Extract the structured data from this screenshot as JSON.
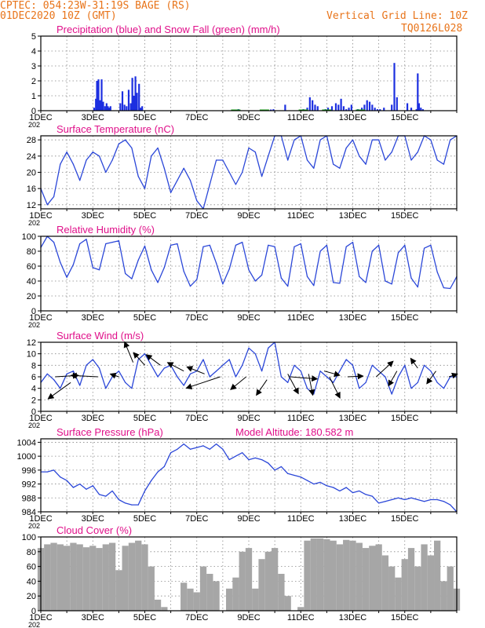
{
  "header": {
    "station": "CPTEC:   054:23W-31:19S  BAGE (RS)",
    "run": "01DEC2020 10Z (GMT)",
    "grid_line": "Vertical Grid Line: 10Z",
    "code": "TQ0126L028"
  },
  "colors": {
    "header_orange": "#e8741a",
    "title_magenta": "#e0108a",
    "line_blue": "#2b47d8",
    "precip_blue": "#1c2fe0",
    "snow_green": "#17a317",
    "cloud_gray": "#a6a6a6",
    "arrow_black": "#000000",
    "grid_gray": "#888888"
  },
  "x_axis": {
    "tick_labels": [
      "1DEC",
      "3DEC",
      "5DEC",
      "7DEC",
      "9DEC",
      "11DEC",
      "13DEC",
      "15DEC"
    ],
    "year_fragment": "202"
  },
  "chart_data": [
    {
      "type": "bar",
      "title": "Precipitation (blue) and Snow Fall (green) (mm/h)",
      "ylim": [
        0,
        5
      ],
      "yticks": [
        0,
        1,
        2,
        3,
        4,
        5
      ],
      "grid": true,
      "series": [
        {
          "name": "Precipitation",
          "x": [
            2.05,
            2.12,
            2.16,
            2.22,
            2.28,
            2.34,
            2.4,
            2.47,
            2.53,
            2.58,
            2.64,
            2.68,
            3.06,
            3.14,
            3.22,
            3.3,
            3.38,
            3.46,
            3.52,
            3.58,
            3.64,
            3.7,
            3.78,
            3.84,
            3.9,
            7.6,
            8.85,
            8.95,
            9.4,
            10.1,
            10.25,
            10.35,
            10.45,
            10.55,
            10.65,
            10.95,
            11.05,
            11.2,
            11.35,
            11.45,
            11.55,
            11.65,
            11.75,
            11.85,
            11.95,
            12.2,
            12.35,
            12.45,
            12.55,
            12.65,
            12.75,
            12.85,
            12.95,
            13.05,
            13.2,
            13.5,
            13.6,
            13.7,
            14.1,
            14.25,
            14.45,
            14.5,
            14.55,
            14.62,
            14.7
          ],
          "values": [
            0.2,
            0.8,
            2.0,
            2.1,
            0.7,
            2.1,
            0.6,
            0.3,
            0.5,
            0.3,
            0.2,
            0.3,
            0.5,
            1.3,
            0.4,
            0.3,
            1.4,
            0.5,
            2.2,
            1.0,
            2.3,
            1.2,
            1.8,
            0.2,
            0.3,
            0.1,
            0.05,
            0.1,
            0.4,
            0.1,
            0.2,
            0.9,
            0.7,
            0.4,
            0.3,
            0.1,
            0.2,
            0.3,
            0.5,
            0.4,
            0.8,
            0.3,
            0.1,
            0.2,
            0.4,
            0.1,
            0.2,
            0.4,
            0.7,
            0.6,
            0.4,
            0.2,
            0.1,
            0.1,
            0.2,
            0.4,
            3.2,
            0.9,
            0.5,
            0.2,
            0.1,
            2.5,
            0.5,
            0.2,
            0.1
          ]
        },
        {
          "name": "Snow Fall",
          "x": [
            7.5,
            8.6,
            10.1,
            11.0,
            12.3
          ],
          "values": [
            0.05,
            0.05,
            0.05,
            0.05,
            0.05
          ]
        }
      ]
    },
    {
      "type": "line",
      "title": "Surface Temperature (nC)",
      "ylim": [
        11,
        29
      ],
      "yticks": [
        12,
        16,
        20,
        24,
        28
      ],
      "grid": true,
      "x": [
        0,
        0.25,
        0.5,
        0.75,
        1,
        1.25,
        1.5,
        1.75,
        2,
        2.25,
        2.5,
        2.75,
        3,
        3.25,
        3.5,
        3.75,
        4,
        4.25,
        4.5,
        4.75,
        5,
        5.25,
        5.5,
        5.75,
        6,
        6.25,
        6.5,
        6.75,
        7,
        7.25,
        7.5,
        7.75,
        8,
        8.25,
        8.5,
        8.75,
        9,
        9.25,
        9.5,
        9.75,
        10,
        10.25,
        10.5,
        10.75,
        11,
        11.25,
        11.5,
        11.75,
        12,
        12.25,
        12.5,
        12.75,
        13,
        13.25,
        13.5,
        13.75,
        14,
        14.25,
        14.5,
        14.75,
        15,
        15.25,
        15.5,
        15.75,
        16
      ],
      "values": [
        16,
        12,
        14,
        22,
        25,
        22,
        18,
        23,
        25,
        24,
        20,
        23,
        27,
        28,
        26,
        19,
        16,
        24,
        26,
        21,
        15,
        18,
        21,
        18,
        13,
        11,
        17,
        23,
        23,
        20,
        17,
        20,
        26,
        25,
        19,
        24,
        29,
        29,
        23,
        28,
        29,
        23,
        21,
        28,
        29,
        22,
        21,
        26,
        28,
        24,
        22,
        28,
        28,
        23,
        25,
        29,
        29,
        23,
        25,
        29,
        28,
        23,
        22,
        28,
        29
      ]
    },
    {
      "type": "line",
      "title": "Relative Humidity (%)",
      "ylim": [
        0,
        100
      ],
      "yticks": [
        0,
        20,
        40,
        60,
        80,
        100
      ],
      "grid": true,
      "x": [
        0,
        0.25,
        0.5,
        0.75,
        1,
        1.25,
        1.5,
        1.75,
        2,
        2.25,
        2.5,
        2.75,
        3,
        3.25,
        3.5,
        3.75,
        4,
        4.25,
        4.5,
        4.75,
        5,
        5.25,
        5.5,
        5.75,
        6,
        6.25,
        6.5,
        6.75,
        7,
        7.25,
        7.5,
        7.75,
        8,
        8.25,
        8.5,
        8.75,
        9,
        9.25,
        9.5,
        9.75,
        10,
        10.25,
        10.5,
        10.75,
        11,
        11.25,
        11.5,
        11.75,
        12,
        12.25,
        12.5,
        12.75,
        13,
        13.25,
        13.5,
        13.75,
        14,
        14.25,
        14.5,
        14.75,
        15,
        15.25,
        15.5,
        15.75,
        16
      ],
      "values": [
        85,
        100,
        92,
        65,
        45,
        62,
        90,
        96,
        58,
        55,
        90,
        92,
        94,
        50,
        43,
        68,
        87,
        55,
        38,
        58,
        88,
        90,
        53,
        33,
        42,
        86,
        88,
        64,
        36,
        56,
        88,
        92,
        55,
        40,
        48,
        88,
        86,
        44,
        33,
        86,
        90,
        46,
        34,
        80,
        88,
        38,
        37,
        86,
        92,
        46,
        38,
        80,
        88,
        40,
        36,
        78,
        88,
        44,
        32,
        84,
        88,
        52,
        31,
        30,
        46
      ]
    },
    {
      "type": "line",
      "title": "Surface Wind (m/s)",
      "ylim": [
        0,
        12
      ],
      "yticks": [
        0,
        2,
        4,
        6,
        8,
        10,
        12
      ],
      "grid": true,
      "x": [
        0,
        0.25,
        0.5,
        0.75,
        1,
        1.25,
        1.5,
        1.75,
        2,
        2.25,
        2.5,
        2.75,
        3,
        3.25,
        3.5,
        3.75,
        4,
        4.25,
        4.5,
        4.75,
        5,
        5.25,
        5.5,
        5.75,
        6,
        6.25,
        6.5,
        6.75,
        7,
        7.25,
        7.5,
        7.75,
        8,
        8.25,
        8.5,
        8.75,
        9,
        9.25,
        9.5,
        9.75,
        10,
        10.25,
        10.5,
        10.75,
        11,
        11.25,
        11.5,
        11.75,
        12,
        12.25,
        12.5,
        12.75,
        13,
        13.25,
        13.5,
        13.75,
        14,
        14.25,
        14.5,
        14.75,
        15,
        15.25,
        15.5,
        15.75,
        16
      ],
      "values": [
        5,
        6.5,
        5.5,
        4,
        6.5,
        7,
        4.5,
        8,
        9,
        7.5,
        4,
        6,
        7,
        5,
        4,
        9,
        10,
        8,
        6,
        7.5,
        8,
        6,
        4.5,
        6.5,
        7,
        9,
        6,
        7,
        8,
        9,
        6,
        8,
        11,
        10,
        7,
        11,
        12,
        6,
        5,
        8,
        7,
        4,
        3,
        7,
        6,
        5,
        7,
        9,
        8,
        4,
        5,
        8,
        7,
        6,
        3,
        6,
        8,
        4,
        5,
        8,
        7,
        5,
        4,
        6,
        6
      ],
      "vectors": [
        {
          "x": 0.55,
          "v": 6.0,
          "u_ms": 3.3,
          "v_ms": 0.2
        },
        {
          "x": 1.15,
          "v": 5.0,
          "u_ms": -3.2,
          "v_ms": -2.3
        },
        {
          "x": 2.2,
          "v": 6.0,
          "u_ms": -3.8,
          "v_ms": 0.2
        },
        {
          "x": 3.0,
          "v": 6.0,
          "u_ms": -1.2,
          "v_ms": 0.4
        },
        {
          "x": 3.55,
          "v": 8.5,
          "u_ms": -1.2,
          "v_ms": 2.9
        },
        {
          "x": 4.0,
          "v": 8.0,
          "u_ms": -1.6,
          "v_ms": 1.8
        },
        {
          "x": 4.6,
          "v": 8.0,
          "u_ms": -2.0,
          "v_ms": 1.5
        },
        {
          "x": 5.5,
          "v": 7.0,
          "u_ms": -2.3,
          "v_ms": 1.2
        },
        {
          "x": 6.3,
          "v": 6.5,
          "u_ms": -2.5,
          "v_ms": 1.0
        },
        {
          "x": 6.9,
          "v": 6.0,
          "u_ms": -4.8,
          "v_ms": -1.6
        },
        {
          "x": 7.9,
          "v": 6.0,
          "u_ms": -2.2,
          "v_ms": -1.8
        },
        {
          "x": 8.7,
          "v": 5.5,
          "u_ms": -1.5,
          "v_ms": -2.2
        },
        {
          "x": 9.5,
          "v": 6.5,
          "u_ms": 1.5,
          "v_ms": -2.8
        },
        {
          "x": 9.6,
          "v": 6.0,
          "u_ms": 3.8,
          "v_ms": -0.3
        },
        {
          "x": 10.3,
          "v": 6.5,
          "u_ms": 0.6,
          "v_ms": -3.0
        },
        {
          "x": 10.9,
          "v": 7.0,
          "u_ms": 2.2,
          "v_ms": -0.6
        },
        {
          "x": 11.1,
          "v": 6.0,
          "u_ms": 1.5,
          "v_ms": -3.0
        },
        {
          "x": 11.8,
          "v": 6.0,
          "u_ms": 2.2,
          "v_ms": 0.1
        },
        {
          "x": 12.9,
          "v": 6.0,
          "u_ms": 2.4,
          "v_ms": 2.2
        },
        {
          "x": 13.7,
          "v": 7.0,
          "u_ms": -1.2,
          "v_ms": -2.1
        },
        {
          "x": 14.5,
          "v": 7.5,
          "u_ms": -1.0,
          "v_ms": 1.4
        },
        {
          "x": 15.2,
          "v": 7.0,
          "u_ms": -1.3,
          "v_ms": -1.8
        },
        {
          "x": 15.7,
          "v": 6.0,
          "u_ms": 1.2,
          "v_ms": 0.4
        }
      ]
    },
    {
      "type": "line",
      "title": "Surface Pressure (hPa)",
      "annotation": "Model Altitude: 180.582 m",
      "ylim": [
        984,
        1005
      ],
      "yticks": [
        984,
        988,
        992,
        996,
        1000,
        1004
      ],
      "grid": true,
      "x": [
        0,
        0.25,
        0.5,
        0.75,
        1,
        1.25,
        1.5,
        1.75,
        2,
        2.25,
        2.5,
        2.75,
        3,
        3.25,
        3.5,
        3.75,
        4,
        4.25,
        4.5,
        4.75,
        5,
        5.25,
        5.5,
        5.75,
        6,
        6.25,
        6.5,
        6.75,
        7,
        7.25,
        7.5,
        7.75,
        8,
        8.25,
        8.5,
        8.75,
        9,
        9.25,
        9.5,
        9.75,
        10,
        10.25,
        10.5,
        10.75,
        11,
        11.25,
        11.5,
        11.75,
        12,
        12.25,
        12.5,
        12.75,
        13,
        13.25,
        13.5,
        13.75,
        14,
        14.25,
        14.5,
        14.75,
        15,
        15.25,
        15.5,
        15.75,
        16
      ],
      "values": [
        995.5,
        995.5,
        996,
        994,
        993,
        991,
        992,
        990.5,
        991.5,
        989,
        988.5,
        990,
        987.5,
        986.5,
        986,
        986,
        990,
        993,
        995.5,
        997,
        1001,
        1002,
        1003.5,
        1002,
        1002.5,
        1003,
        1002,
        1003.5,
        1002,
        999,
        1000,
        1001,
        999,
        999.5,
        999,
        998,
        996,
        997,
        995,
        994.5,
        994,
        993,
        992,
        992.5,
        991.5,
        991,
        990,
        991,
        989.5,
        990,
        989,
        988.5,
        986.5,
        987,
        987.5,
        988,
        987.5,
        988,
        987.5,
        987,
        987.5,
        987.5,
        987,
        986,
        984
      ]
    },
    {
      "type": "bar",
      "title": "Cloud Cover (%)",
      "ylim": [
        0,
        100
      ],
      "yticks": [
        0,
        20,
        40,
        60,
        80,
        100
      ],
      "grid": true,
      "x": [
        0,
        0.25,
        0.5,
        0.75,
        1,
        1.25,
        1.5,
        1.75,
        2,
        2.25,
        2.5,
        2.75,
        3,
        3.25,
        3.5,
        3.75,
        4,
        4.25,
        4.5,
        4.75,
        5,
        5.25,
        5.5,
        5.75,
        6,
        6.25,
        6.5,
        6.75,
        7,
        7.25,
        7.5,
        7.75,
        8,
        8.25,
        8.5,
        8.75,
        9,
        9.25,
        9.5,
        9.75,
        10,
        10.25,
        10.5,
        10.75,
        11,
        11.25,
        11.5,
        11.75,
        12,
        12.25,
        12.5,
        12.75,
        13,
        13.25,
        13.5,
        13.75,
        14,
        14.25,
        14.5,
        14.75,
        15,
        15.25,
        15.5,
        15.75,
        16
      ],
      "values": [
        85,
        90,
        92,
        90,
        88,
        92,
        90,
        86,
        88,
        85,
        90,
        92,
        55,
        88,
        92,
        95,
        90,
        60,
        15,
        5,
        0,
        0,
        38,
        30,
        25,
        60,
        50,
        40,
        0,
        30,
        45,
        80,
        85,
        30,
        70,
        80,
        85,
        50,
        20,
        0,
        5,
        95,
        98,
        98,
        97,
        95,
        90,
        96,
        95,
        92,
        85,
        88,
        90,
        75,
        60,
        45,
        70,
        85,
        60,
        90,
        75,
        95,
        40,
        60,
        30
      ]
    }
  ]
}
